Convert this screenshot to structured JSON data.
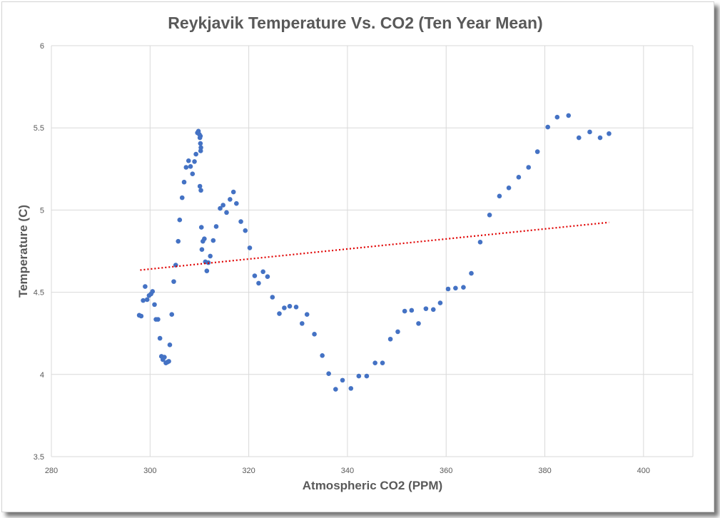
{
  "chart_data": {
    "type": "scatter",
    "title": "Reykjavik Temperature Vs. CO2 (Ten Year Mean)",
    "xlabel": "Atmospheric CO2 (PPM)",
    "ylabel": "Temperature (C)",
    "xlim": [
      280,
      410
    ],
    "ylim": [
      3.5,
      6
    ],
    "x_ticks": [
      280,
      300,
      320,
      340,
      360,
      380,
      400
    ],
    "y_ticks": [
      3.5,
      4,
      4.5,
      5,
      5.5,
      6
    ],
    "grid": true,
    "legend": "none",
    "colors": {
      "points": "#4472c4",
      "trendline": "#e00000",
      "grid": "#d9d9d9",
      "text": "#595959"
    },
    "series": [
      {
        "points": [
          [
            297.8,
            4.36
          ],
          [
            298.2,
            4.355
          ],
          [
            298.6,
            4.45
          ],
          [
            299.0,
            4.535
          ],
          [
            299.4,
            4.455
          ],
          [
            299.8,
            4.48
          ],
          [
            300.2,
            4.49
          ],
          [
            300.5,
            4.505
          ],
          [
            300.9,
            4.425
          ],
          [
            301.2,
            4.335
          ],
          [
            301.6,
            4.335
          ],
          [
            302.0,
            4.22
          ],
          [
            302.3,
            4.11
          ],
          [
            302.6,
            4.09
          ],
          [
            302.9,
            4.105
          ],
          [
            303.2,
            4.07
          ],
          [
            303.5,
            4.075
          ],
          [
            303.8,
            4.08
          ],
          [
            304.0,
            4.18
          ],
          [
            304.4,
            4.365
          ],
          [
            304.8,
            4.565
          ],
          [
            305.2,
            4.665
          ],
          [
            305.7,
            4.81
          ],
          [
            306.0,
            4.94
          ],
          [
            306.5,
            5.075
          ],
          [
            306.9,
            5.17
          ],
          [
            307.3,
            5.26
          ],
          [
            307.8,
            5.3
          ],
          [
            308.2,
            5.265
          ],
          [
            308.6,
            5.22
          ],
          [
            309.0,
            5.295
          ],
          [
            309.3,
            5.34
          ],
          [
            309.6,
            5.47
          ],
          [
            309.8,
            5.48
          ],
          [
            310.0,
            5.46
          ],
          [
            310.1,
            5.44
          ],
          [
            310.2,
            5.45
          ],
          [
            310.3,
            5.38
          ],
          [
            310.25,
            5.36
          ],
          [
            310.2,
            5.405
          ],
          [
            310.1,
            5.145
          ],
          [
            310.3,
            5.12
          ],
          [
            310.4,
            4.895
          ],
          [
            310.5,
            4.76
          ],
          [
            310.7,
            4.81
          ],
          [
            311.0,
            4.825
          ],
          [
            311.2,
            4.685
          ],
          [
            311.5,
            4.63
          ],
          [
            311.8,
            4.68
          ],
          [
            312.2,
            4.72
          ],
          [
            312.8,
            4.815
          ],
          [
            313.4,
            4.9
          ],
          [
            314.2,
            5.01
          ],
          [
            314.8,
            5.03
          ],
          [
            315.5,
            4.985
          ],
          [
            316.2,
            5.065
          ],
          [
            316.9,
            5.11
          ],
          [
            317.5,
            5.04
          ],
          [
            318.4,
            4.93
          ],
          [
            319.3,
            4.875
          ],
          [
            320.2,
            4.77
          ],
          [
            321.2,
            4.6
          ],
          [
            322.0,
            4.555
          ],
          [
            322.9,
            4.625
          ],
          [
            323.8,
            4.595
          ],
          [
            324.8,
            4.47
          ],
          [
            326.2,
            4.37
          ],
          [
            327.2,
            4.405
          ],
          [
            328.3,
            4.415
          ],
          [
            329.6,
            4.41
          ],
          [
            330.8,
            4.31
          ],
          [
            331.8,
            4.365
          ],
          [
            333.3,
            4.245
          ],
          [
            334.9,
            4.115
          ],
          [
            336.2,
            4.005
          ],
          [
            337.6,
            3.91
          ],
          [
            339.0,
            3.965
          ],
          [
            340.7,
            3.915
          ],
          [
            342.3,
            3.99
          ],
          [
            343.9,
            3.99
          ],
          [
            345.6,
            4.07
          ],
          [
            347.1,
            4.07
          ],
          [
            348.7,
            4.215
          ],
          [
            350.2,
            4.26
          ],
          [
            351.6,
            4.385
          ],
          [
            353.0,
            4.39
          ],
          [
            354.4,
            4.31
          ],
          [
            355.9,
            4.4
          ],
          [
            357.4,
            4.395
          ],
          [
            358.8,
            4.435
          ],
          [
            360.4,
            4.52
          ],
          [
            361.9,
            4.525
          ],
          [
            363.5,
            4.53
          ],
          [
            365.1,
            4.615
          ],
          [
            366.9,
            4.805
          ],
          [
            368.8,
            4.97
          ],
          [
            370.8,
            5.085
          ],
          [
            372.7,
            5.135
          ],
          [
            374.7,
            5.2
          ],
          [
            376.7,
            5.26
          ],
          [
            378.5,
            5.355
          ],
          [
            380.6,
            5.505
          ],
          [
            382.5,
            5.565
          ],
          [
            384.8,
            5.575
          ],
          [
            386.9,
            5.44
          ],
          [
            389.1,
            5.475
          ],
          [
            391.2,
            5.44
          ],
          [
            393.0,
            5.465
          ]
        ]
      }
    ],
    "trendline": {
      "style": "dotted",
      "from": [
        298.0,
        4.635
      ],
      "to": [
        393.0,
        4.925
      ]
    }
  }
}
